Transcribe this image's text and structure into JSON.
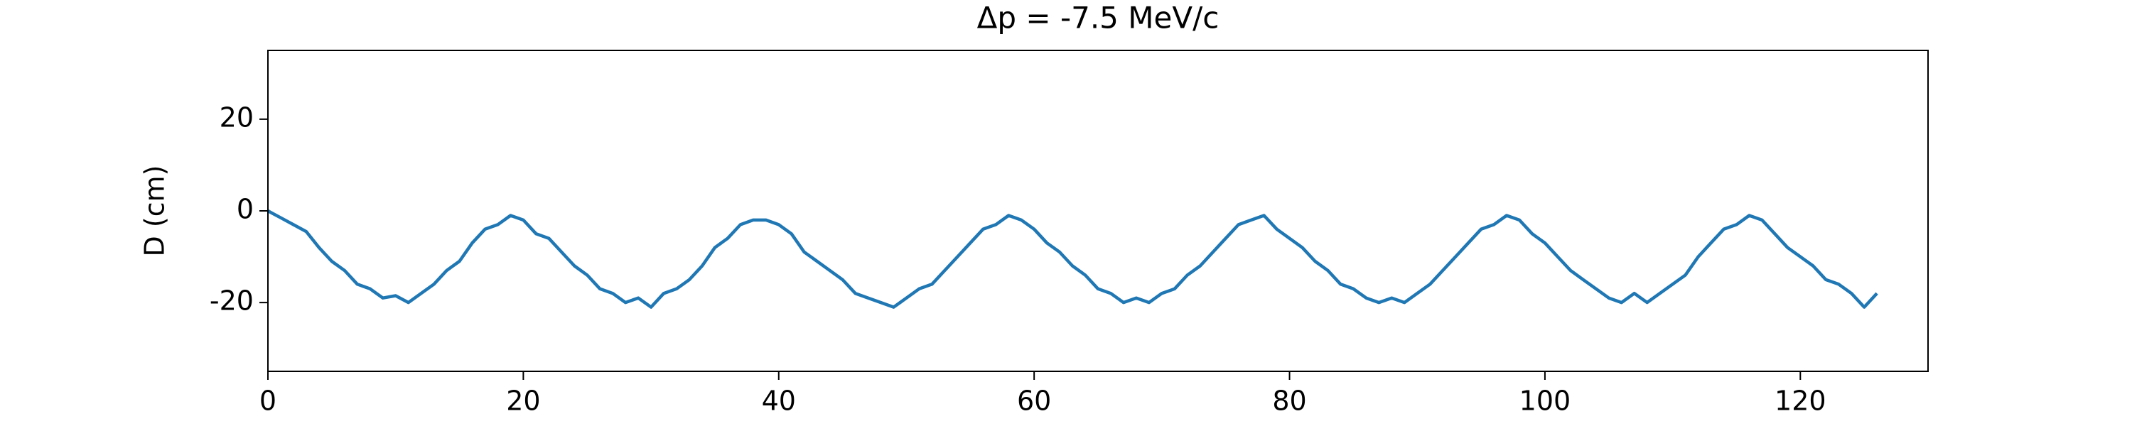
{
  "chart_data": {
    "type": "line",
    "title": "Δp = -7.5 MeV/c",
    "y_label": "D (cm)",
    "x": [
      0,
      1,
      2,
      3,
      4,
      5,
      6,
      7,
      8,
      9,
      10,
      11,
      12,
      13,
      14,
      15,
      16,
      17,
      18,
      19,
      20,
      21,
      22,
      23,
      24,
      25,
      26,
      27,
      28,
      29,
      30,
      31,
      32,
      33,
      34,
      35,
      36,
      37,
      38,
      39,
      40,
      41,
      42,
      43,
      44,
      45,
      46,
      47,
      48,
      49,
      50,
      51,
      52,
      53,
      54,
      55,
      56,
      57,
      58,
      59,
      60,
      61,
      62,
      63,
      64,
      65,
      66,
      67,
      68,
      69,
      70,
      71,
      72,
      73,
      74,
      75,
      76,
      77,
      78,
      79,
      80,
      81,
      82,
      83,
      84,
      85,
      86,
      87,
      88,
      89,
      90,
      91,
      92,
      93,
      94,
      95,
      96,
      97,
      98,
      99,
      100,
      101,
      102,
      103,
      104,
      105,
      106,
      107,
      108,
      109,
      110,
      111,
      112,
      113,
      114,
      115,
      116,
      117,
      118,
      119,
      120,
      121,
      122,
      123,
      124,
      125,
      126
    ],
    "series": [
      {
        "color": "#1f77b4",
        "values": [
          0,
          -1.5,
          -3,
          -4.5,
          -8,
          -11,
          -13,
          -16,
          -17,
          -19,
          -18.5,
          -20,
          -18,
          -16,
          -13,
          -11,
          -7,
          -4,
          -3,
          -1,
          -2,
          -5,
          -6,
          -9,
          -12,
          -14,
          -17,
          -18,
          -20,
          -19,
          -21,
          -18,
          -17,
          -15,
          -12,
          -8,
          -6,
          -3,
          -2,
          -2,
          -3,
          -5,
          -9,
          -11,
          -13,
          -15,
          -18,
          -19,
          -20,
          -21,
          -19,
          -17,
          -16,
          -13,
          -10,
          -7,
          -4,
          -3,
          -1,
          -2,
          -4,
          -7,
          -9,
          -12,
          -14,
          -17,
          -18,
          -20,
          -19,
          -20,
          -18,
          -17,
          -14,
          -12,
          -9,
          -6,
          -3,
          -2,
          -1,
          -4,
          -6,
          -8,
          -11,
          -13,
          -16,
          -17,
          -19,
          -20,
          -19,
          -20,
          -18,
          -16,
          -13,
          -10,
          -7,
          -4,
          -3,
          -1,
          -2,
          -5,
          -7,
          -10,
          -13,
          -15,
          -17,
          -19,
          -20,
          -18,
          -20,
          -18,
          -16,
          -14,
          -10,
          -7,
          -4,
          -3,
          -1,
          -2,
          -5,
          -8,
          -10,
          -12,
          -15,
          -16,
          -18,
          -21,
          -18
        ]
      }
    ],
    "xlim": [
      0,
      130
    ],
    "xticks": [
      0,
      20,
      40,
      60,
      80,
      100,
      120
    ],
    "ylim": [
      -35,
      35
    ],
    "yticks": [
      -20,
      0,
      20
    ]
  }
}
